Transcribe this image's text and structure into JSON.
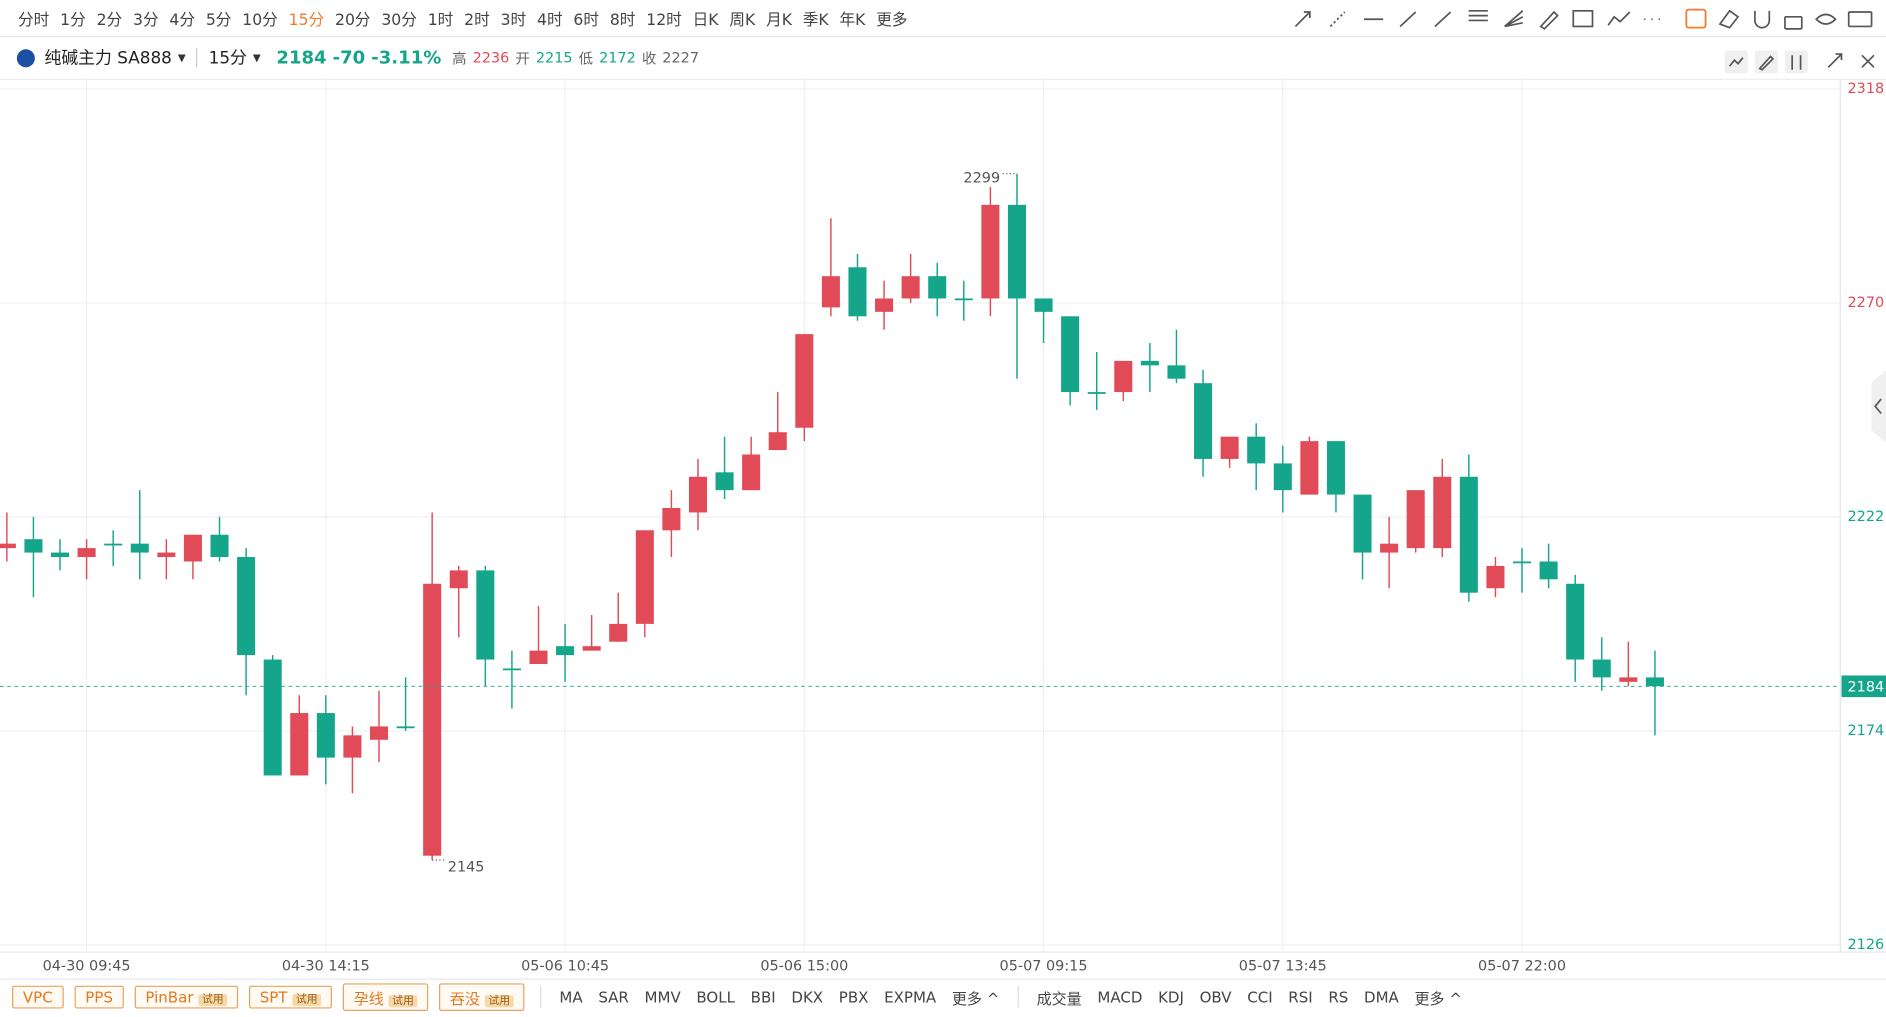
{
  "toolbar": {
    "periods": [
      "分时",
      "1分",
      "2分",
      "3分",
      "4分",
      "5分",
      "10分",
      "15分",
      "20分",
      "30分",
      "1时",
      "2时",
      "3时",
      "4时",
      "6时",
      "8时",
      "12时",
      "日K",
      "周K",
      "月K",
      "季K",
      "年K",
      "更多"
    ],
    "active": 7
  },
  "header": {
    "symbol": "纯碱主力 SA888",
    "period": "15分",
    "price": "2184",
    "change": "-70",
    "change_pct": "-3.11%",
    "fields": [
      {
        "label": "高",
        "value": "2236",
        "color": "#e04b57"
      },
      {
        "label": "开",
        "value": "2215",
        "color": "#14a58a"
      },
      {
        "label": "低",
        "value": "2172",
        "color": "#14a58a"
      },
      {
        "label": "收",
        "value": "2227",
        "color": "#666666"
      }
    ]
  },
  "bottom": {
    "patterns": [
      {
        "name": "VPC"
      },
      {
        "name": "PPS"
      },
      {
        "name": "PinBar",
        "tag": "试用"
      },
      {
        "name": "SPT",
        "tag": "试用"
      },
      {
        "name": "孕线",
        "tag": "试用"
      },
      {
        "name": "吞没",
        "tag": "试用"
      }
    ],
    "main_indicators": [
      "MA",
      "SAR",
      "MMV",
      "BOLL",
      "BBI",
      "DKX",
      "PBX",
      "EXPMA",
      "更多 ^"
    ],
    "sub_indicators": [
      "成交量",
      "MACD",
      "KDJ",
      "OBV",
      "CCI",
      "RSI",
      "RS",
      "DMA",
      "更多 ^"
    ]
  },
  "chart_data": {
    "type": "candlestick",
    "categories": [
      null,
      null,
      null,
      "04-30 09:45",
      null,
      null,
      null,
      null,
      null,
      null,
      null,
      null,
      "04-30 14:15",
      null,
      null,
      null,
      null,
      null,
      null,
      null,
      null,
      "05-06 10:45",
      null,
      null,
      null,
      null,
      null,
      null,
      null,
      null,
      "05-06 15:00",
      null,
      null,
      null,
      null,
      null,
      null,
      null,
      null,
      "05-07 09:15",
      null,
      null,
      null,
      null,
      null,
      null,
      null,
      null,
      "05-07 13:45",
      null,
      null,
      null,
      null,
      null,
      null,
      null,
      null,
      "05-07 22:00",
      null,
      null,
      null,
      null,
      null
    ],
    "open": [
      2215,
      2217,
      2214,
      2213,
      2216,
      2216,
      2213,
      2212,
      2218,
      2213,
      2190,
      2164,
      2178,
      2168,
      2172,
      2175,
      2146,
      2206,
      2210,
      2188,
      2189,
      2193,
      2192,
      2194,
      2198,
      2219,
      2223,
      2232,
      2228,
      2237,
      2242,
      2269,
      2278,
      2268,
      2271,
      2276,
      2271,
      2271,
      2292,
      2271,
      2267,
      2250,
      2250,
      2257,
      2256,
      2252,
      2235,
      2240,
      2234,
      2227,
      2239,
      2227,
      2214,
      2215,
      2215,
      2231,
      2206,
      2212,
      2212,
      2207,
      2190,
      2185,
      2186
    ],
    "high": [
      2223,
      2222,
      2217,
      2217,
      2219,
      2228,
      2217,
      2218,
      2222,
      2215,
      2191,
      2182,
      2182,
      2175,
      2183,
      2186,
      2223,
      2211,
      2211,
      2192,
      2202,
      2198,
      2200,
      2205,
      2219,
      2228,
      2235,
      2240,
      2240,
      2250,
      2263,
      2289,
      2281,
      2275,
      2281,
      2279,
      2275,
      2296,
      2299,
      2271,
      2267,
      2259,
      2257,
      2261,
      2264,
      2255,
      2240,
      2243,
      2238,
      2240,
      2239,
      2227,
      2222,
      2228,
      2235,
      2236,
      2213,
      2215,
      2216,
      2209,
      2195,
      2194,
      2192
    ],
    "low": [
      2212,
      2204,
      2210,
      2208,
      2211,
      2208,
      2208,
      2208,
      2212,
      2182,
      2164,
      2164,
      2162,
      2160,
      2167,
      2174,
      2145,
      2195,
      2184,
      2179,
      2189,
      2185,
      2192,
      2194,
      2195,
      2213,
      2219,
      2226,
      2228,
      2237,
      2239,
      2267,
      2266,
      2264,
      2270,
      2267,
      2266,
      2267,
      2253,
      2261,
      2247,
      2246,
      2248,
      2250,
      2252,
      2231,
      2233,
      2228,
      2223,
      2227,
      2223,
      2208,
      2206,
      2214,
      2213,
      2203,
      2204,
      2205,
      2206,
      2185,
      2183,
      2184,
      2173
    ],
    "close": [
      2216,
      2214,
      2213,
      2215,
      2216,
      2214,
      2214,
      2218,
      2213,
      2191,
      2164,
      2178,
      2168,
      2173,
      2175,
      2175,
      2207,
      2210,
      2190,
      2188,
      2192,
      2191,
      2193,
      2198,
      2219,
      2224,
      2231,
      2228,
      2236,
      2241,
      2263,
      2276,
      2267,
      2271,
      2276,
      2271,
      2271,
      2292,
      2271,
      2268,
      2250,
      2250,
      2257,
      2256,
      2253,
      2235,
      2240,
      2234,
      2228,
      2239,
      2227,
      2214,
      2216,
      2228,
      2231,
      2205,
      2211,
      2212,
      2208,
      2190,
      2186,
      2186,
      2184
    ],
    "up_color": "#e04b57",
    "down_color": "#14a58a",
    "ylim": [
      2126,
      2318
    ],
    "yticks": [
      2126,
      2174,
      2222,
      2270,
      2318
    ],
    "ytick_colors": [
      "#14a58a",
      "#14a58a",
      "#14a58a",
      "#e04b57",
      "#e04b57"
    ],
    "grid": true,
    "max_index": 38,
    "min_index": 16
  }
}
